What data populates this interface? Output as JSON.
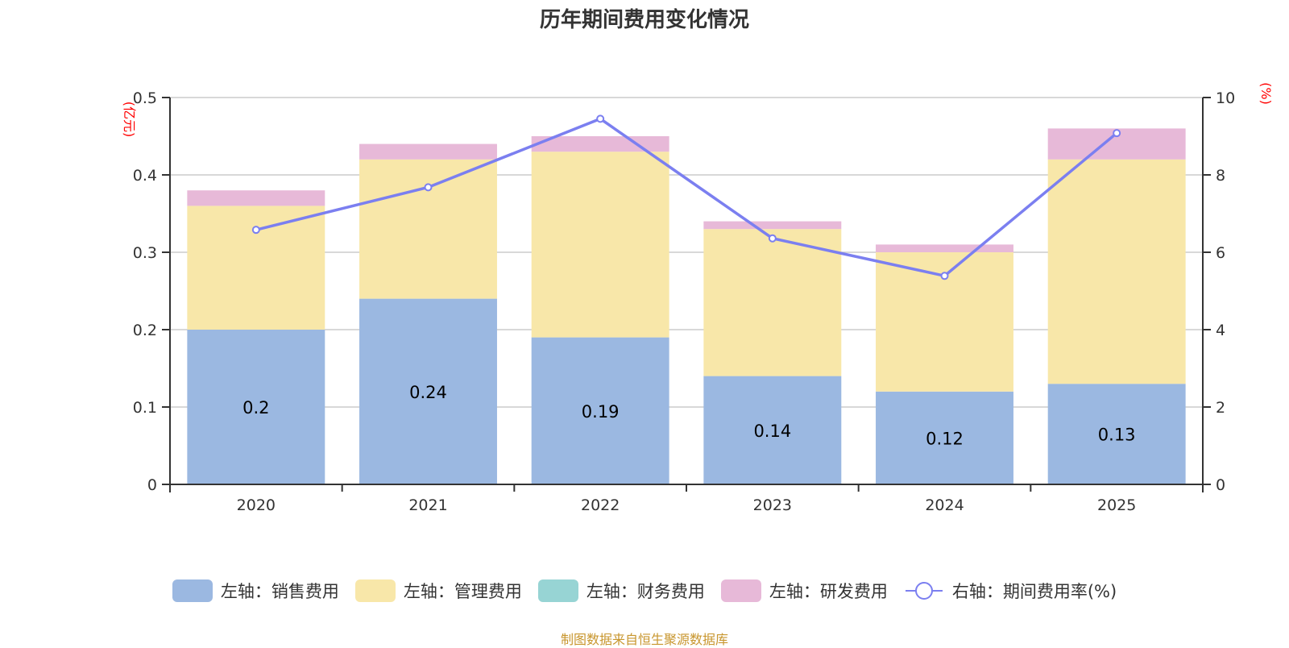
{
  "chart_data": {
    "type": "bar",
    "subtype": "stacked-bar-with-line",
    "title": "历年期间费用变化情况",
    "categories": [
      "2020",
      "2021",
      "2022",
      "2023",
      "2024",
      "2025"
    ],
    "left_axis": {
      "unit_label": "(亿元)",
      "ylim": [
        0,
        0.5
      ],
      "ticks": [
        "0",
        "0.1",
        "0.2",
        "0.3",
        "0.4",
        "0.5"
      ]
    },
    "right_axis": {
      "unit_label": "(%)",
      "ylim": [
        0,
        10
      ],
      "ticks": [
        "0",
        "2",
        "4",
        "6",
        "8",
        "10"
      ]
    },
    "grid": true,
    "legend_position": "bottom",
    "series": [
      {
        "name": "左轴：销售费用",
        "axis": "left",
        "type": "bar",
        "color": "#9bb8e1",
        "values": [
          0.2,
          0.24,
          0.19,
          0.14,
          0.12,
          0.13
        ],
        "labels": [
          "0.2",
          "0.24",
          "0.19",
          "0.14",
          "0.12",
          "0.13"
        ]
      },
      {
        "name": "左轴：管理费用",
        "axis": "left",
        "type": "bar",
        "color": "#f8e7a9",
        "values": [
          0.16,
          0.18,
          0.24,
          0.19,
          0.18,
          0.29
        ]
      },
      {
        "name": "左轴：财务费用",
        "axis": "left",
        "type": "bar",
        "color": "#97d4d4",
        "values": [
          0,
          0,
          0,
          0,
          0,
          0
        ]
      },
      {
        "name": "左轴：研发费用",
        "axis": "left",
        "type": "bar",
        "color": "#e7b9d8",
        "values": [
          0.02,
          0.02,
          0.02,
          0.01,
          0.01,
          0.04
        ]
      },
      {
        "name": "右轴：期间费用率(%)",
        "axis": "right",
        "type": "line",
        "color": "#7b7ff0",
        "values": [
          6.58,
          7.68,
          9.45,
          6.36,
          5.39,
          9.08
        ]
      }
    ]
  },
  "footer": {
    "source_text": "制图数据来自恒生聚源数据库"
  }
}
